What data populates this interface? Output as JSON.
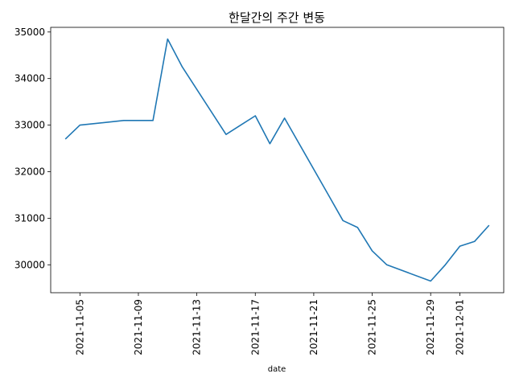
{
  "chart_data": {
    "type": "line",
    "title": "한달간의 주간 변동",
    "xlabel": "date",
    "ylabel": "",
    "grid": false,
    "legend": null,
    "line_color": "#1f77b4",
    "x_ticks": [
      "2021-11-05",
      "2021-11-09",
      "2021-11-13",
      "2021-11-17",
      "2021-11-21",
      "2021-11-25",
      "2021-11-29",
      "2021-12-01"
    ],
    "y_ticks": [
      30000,
      31000,
      32000,
      33000,
      34000,
      35000
    ],
    "xlim": [
      "2021-11-03",
      "2021-12-04"
    ],
    "ylim": [
      29400,
      35100
    ],
    "series": [
      {
        "x": [
          "2021-11-04",
          "2021-11-05",
          "2021-11-08",
          "2021-11-09",
          "2021-11-10",
          "2021-11-11",
          "2021-11-12",
          "2021-11-15",
          "2021-11-16",
          "2021-11-17",
          "2021-11-18",
          "2021-11-19",
          "2021-11-22",
          "2021-11-23",
          "2021-11-24",
          "2021-11-25",
          "2021-11-26",
          "2021-11-29",
          "2021-11-30",
          "2021-12-01",
          "2021-12-02",
          "2021-12-03"
        ],
        "y": [
          32700,
          33000,
          33100,
          33100,
          33100,
          34850,
          34250,
          32800,
          33000,
          33200,
          32600,
          33150,
          31500,
          30950,
          30800,
          30300,
          30000,
          29650,
          30000,
          30400,
          30500,
          30850
        ]
      }
    ]
  }
}
